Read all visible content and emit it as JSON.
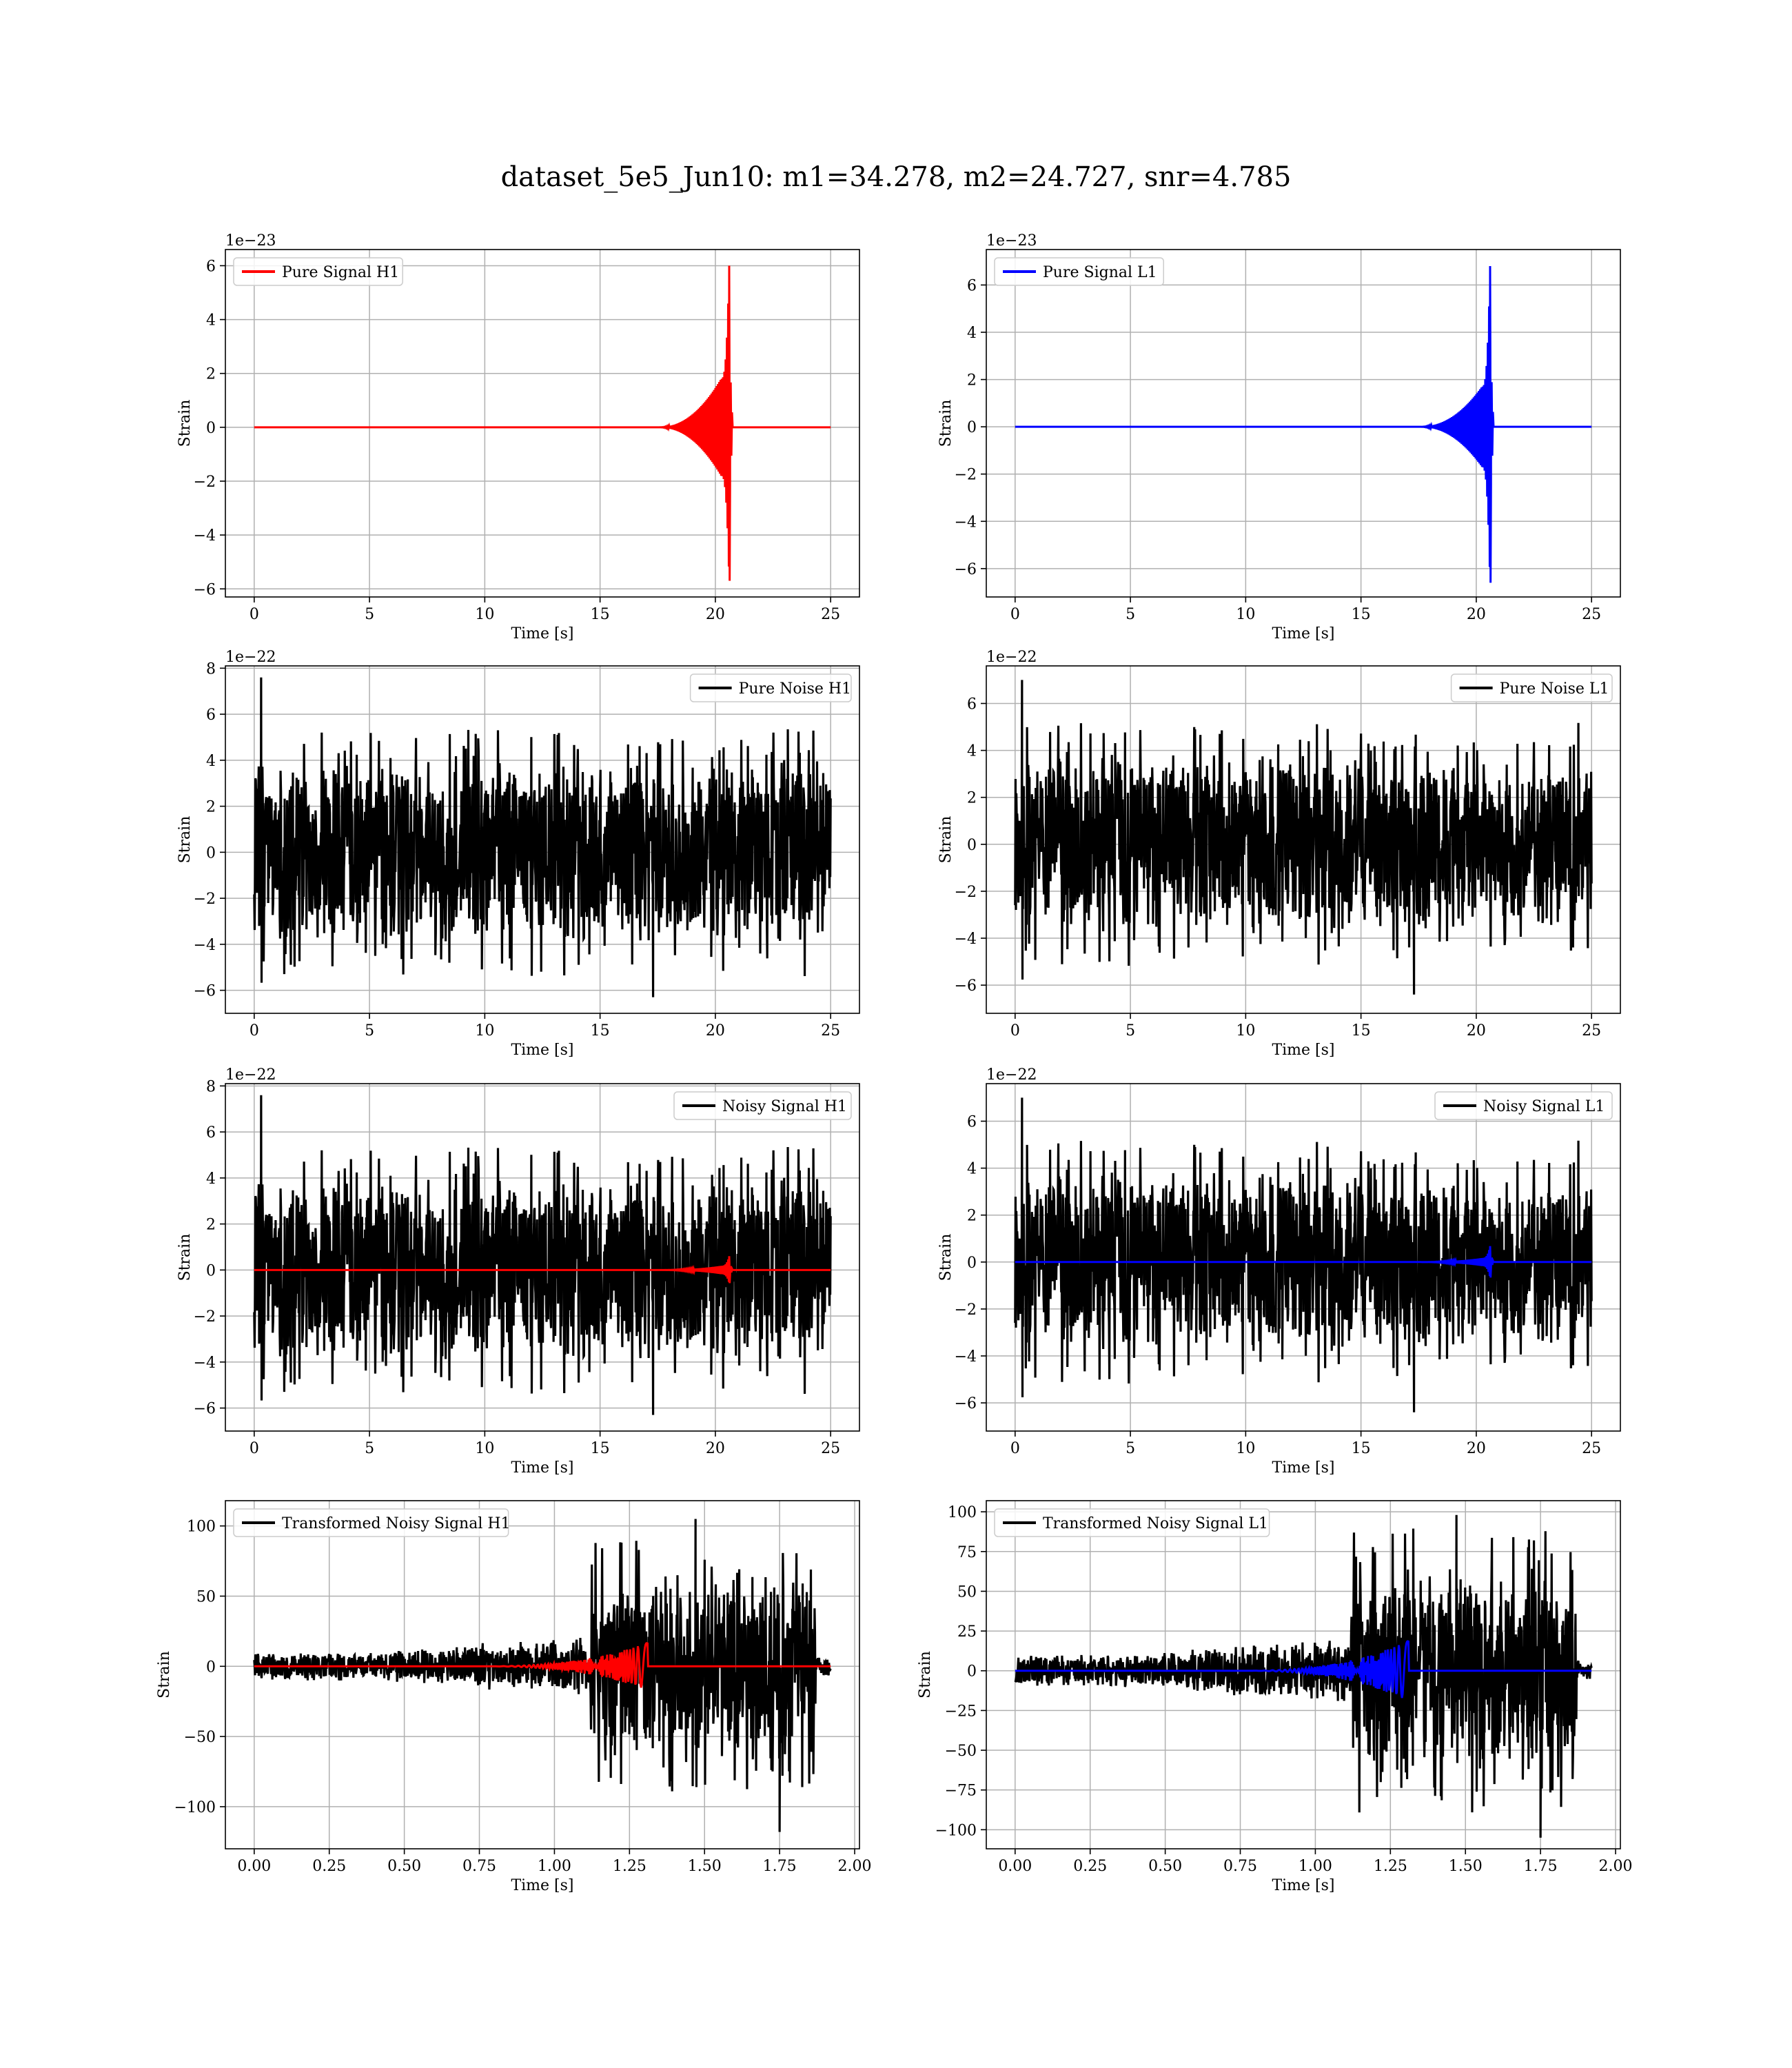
{
  "figure": {
    "title": "dataset_5e5_Jun10: m1=34.278, m2=24.727, snr=4.785"
  },
  "colors": {
    "h1_signal": "#ff0000",
    "l1_signal": "#0000ff",
    "noise": "#000000",
    "grid": "#b0b0b0",
    "background": "#ffffff"
  },
  "chart_data": [
    {
      "type": "line",
      "id": "pure-signal-h1",
      "xlabel": "Time [s]",
      "ylabel": "Strain",
      "offset_label": "1e−23",
      "xlim": [
        -1.25,
        26.25
      ],
      "ylim": [
        -6.3,
        6.6
      ],
      "xticks": [
        0,
        5,
        10,
        15,
        20,
        25
      ],
      "xtick_labels": [
        "0",
        "5",
        "10",
        "15",
        "20",
        "25"
      ],
      "yticks": [
        -6,
        -4,
        -2,
        0,
        2,
        4,
        6
      ],
      "ytick_labels": [
        "−6",
        "−4",
        "−2",
        "0",
        "2",
        "4",
        "6"
      ],
      "grid": true,
      "legend_loc": "upper left",
      "legend": [
        {
          "label": "Pure Signal H1",
          "color": "#ff0000"
        }
      ],
      "series": [
        {
          "name": "Pure Signal H1",
          "color": "#ff0000",
          "kind": "chirp",
          "x_range": [
            0,
            25
          ],
          "chirp_start": 17.5,
          "peak_time": 20.6,
          "peak_pos": 6.0,
          "peak_neg": -5.7,
          "pre_peak_level": 1.8,
          "ringdown_end": 20.75
        }
      ]
    },
    {
      "type": "line",
      "id": "pure-signal-l1",
      "xlabel": "Time [s]",
      "ylabel": "Strain",
      "offset_label": "1e−23",
      "xlim": [
        -1.25,
        26.25
      ],
      "ylim": [
        -7.2,
        7.5
      ],
      "xticks": [
        0,
        5,
        10,
        15,
        20,
        25
      ],
      "xtick_labels": [
        "0",
        "5",
        "10",
        "15",
        "20",
        "25"
      ],
      "yticks": [
        -6,
        -4,
        -2,
        0,
        2,
        4,
        6
      ],
      "ytick_labels": [
        "−6",
        "−4",
        "−2",
        "0",
        "2",
        "4",
        "6"
      ],
      "grid": true,
      "legend_loc": "upper left",
      "legend": [
        {
          "label": "Pure Signal L1",
          "color": "#0000ff"
        }
      ],
      "series": [
        {
          "name": "Pure Signal L1",
          "color": "#0000ff",
          "kind": "chirp",
          "x_range": [
            0,
            25
          ],
          "chirp_start": 17.5,
          "peak_time": 20.6,
          "peak_pos": 6.8,
          "peak_neg": -6.6,
          "pre_peak_level": 1.7,
          "ringdown_end": 20.75
        }
      ]
    },
    {
      "type": "line",
      "id": "pure-noise-h1",
      "xlabel": "Time [s]",
      "ylabel": "Strain",
      "offset_label": "1e−22",
      "xlim": [
        -1.25,
        26.25
      ],
      "ylim": [
        -7.0,
        8.1
      ],
      "xticks": [
        0,
        5,
        10,
        15,
        20,
        25
      ],
      "xtick_labels": [
        "0",
        "5",
        "10",
        "15",
        "20",
        "25"
      ],
      "yticks": [
        -6,
        -4,
        -2,
        0,
        2,
        4,
        6,
        8
      ],
      "ytick_labels": [
        "−6",
        "−4",
        "−2",
        "0",
        "2",
        "4",
        "6",
        "8"
      ],
      "grid": true,
      "legend_loc": "upper right",
      "legend": [
        {
          "label": "Pure Noise H1",
          "color": "#000000"
        }
      ],
      "series": [
        {
          "name": "Pure Noise H1",
          "color": "#000000",
          "kind": "noise",
          "x_range": [
            0,
            25
          ],
          "core": 3.2,
          "spike_max": 7.6,
          "spike_min": -6.3,
          "seed": 11
        }
      ]
    },
    {
      "type": "line",
      "id": "pure-noise-l1",
      "xlabel": "Time [s]",
      "ylabel": "Strain",
      "offset_label": "1e−22",
      "xlim": [
        -1.25,
        26.25
      ],
      "ylim": [
        -7.2,
        7.6
      ],
      "xticks": [
        0,
        5,
        10,
        15,
        20,
        25
      ],
      "xtick_labels": [
        "0",
        "5",
        "10",
        "15",
        "20",
        "25"
      ],
      "yticks": [
        -6,
        -4,
        -2,
        0,
        2,
        4,
        6
      ],
      "ytick_labels": [
        "−6",
        "−4",
        "−2",
        "0",
        "2",
        "4",
        "6"
      ],
      "grid": true,
      "legend_loc": "upper right",
      "legend": [
        {
          "label": "Pure Noise L1",
          "color": "#000000"
        }
      ],
      "series": [
        {
          "name": "Pure Noise L1",
          "color": "#000000",
          "kind": "noise",
          "x_range": [
            0,
            25
          ],
          "core": 3.0,
          "spike_max": 7.0,
          "spike_min": -6.4,
          "seed": 23
        }
      ]
    },
    {
      "type": "line",
      "id": "noisy-signal-h1",
      "xlabel": "Time [s]",
      "ylabel": "Strain",
      "offset_label": "1e−22",
      "xlim": [
        -1.25,
        26.25
      ],
      "ylim": [
        -7.0,
        8.1
      ],
      "xticks": [
        0,
        5,
        10,
        15,
        20,
        25
      ],
      "xtick_labels": [
        "0",
        "5",
        "10",
        "15",
        "20",
        "25"
      ],
      "yticks": [
        -6,
        -4,
        -2,
        0,
        2,
        4,
        6,
        8
      ],
      "ytick_labels": [
        "−6",
        "−4",
        "−2",
        "0",
        "2",
        "4",
        "6",
        "8"
      ],
      "grid": true,
      "legend_loc": "upper right",
      "legend": [
        {
          "label": "Noisy Signal H1",
          "color": "#000000"
        }
      ],
      "series": [
        {
          "name": "Noisy Signal H1",
          "color": "#000000",
          "kind": "noise",
          "x_range": [
            0,
            25
          ],
          "core": 3.2,
          "spike_max": 7.6,
          "spike_min": -6.3,
          "seed": 11
        },
        {
          "color": "#ff0000",
          "kind": "chirp",
          "x_range": [
            0,
            25
          ],
          "chirp_start": 17.5,
          "peak_time": 20.6,
          "peak_pos": 0.6,
          "peak_neg": -0.57,
          "pre_peak_level": 0.18,
          "ringdown_end": 20.75
        }
      ]
    },
    {
      "type": "line",
      "id": "noisy-signal-l1",
      "xlabel": "Time [s]",
      "ylabel": "Strain",
      "offset_label": "1e−22",
      "xlim": [
        -1.25,
        26.25
      ],
      "ylim": [
        -7.2,
        7.6
      ],
      "xticks": [
        0,
        5,
        10,
        15,
        20,
        25
      ],
      "xtick_labels": [
        "0",
        "5",
        "10",
        "15",
        "20",
        "25"
      ],
      "yticks": [
        -6,
        -4,
        -2,
        0,
        2,
        4,
        6
      ],
      "ytick_labels": [
        "−6",
        "−4",
        "−2",
        "0",
        "2",
        "4",
        "6"
      ],
      "grid": true,
      "legend_loc": "upper right",
      "legend": [
        {
          "label": "Noisy Signal L1",
          "color": "#000000"
        }
      ],
      "series": [
        {
          "name": "Noisy Signal L1",
          "color": "#000000",
          "kind": "noise",
          "x_range": [
            0,
            25
          ],
          "core": 3.0,
          "spike_max": 7.0,
          "spike_min": -6.4,
          "seed": 23
        },
        {
          "color": "#0000ff",
          "kind": "chirp",
          "x_range": [
            0,
            25
          ],
          "chirp_start": 17.5,
          "peak_time": 20.6,
          "peak_pos": 0.68,
          "peak_neg": -0.66,
          "pre_peak_level": 0.17,
          "ringdown_end": 20.75
        }
      ]
    },
    {
      "type": "line",
      "id": "transformed-noisy-signal-h1",
      "xlabel": "Time [s]",
      "ylabel": "Strain",
      "offset_label": "",
      "xlim": [
        -0.096,
        2.016
      ],
      "ylim": [
        -130,
        118
      ],
      "xticks": [
        0.0,
        0.25,
        0.5,
        0.75,
        1.0,
        1.25,
        1.5,
        1.75,
        2.0
      ],
      "xtick_labels": [
        "0.00",
        "0.25",
        "0.50",
        "0.75",
        "1.00",
        "1.25",
        "1.50",
        "1.75",
        "2.00"
      ],
      "yticks": [
        -100,
        -50,
        0,
        50,
        100
      ],
      "ytick_labels": [
        "−100",
        "−50",
        "0",
        "50",
        "100"
      ],
      "grid": true,
      "legend_loc": "upper left",
      "legend": [
        {
          "label": "Transformed Noisy Signal H1",
          "color": "#000000"
        }
      ],
      "series": [
        {
          "name": "Transformed Noisy Signal H1",
          "color": "#000000",
          "kind": "transformed_noise",
          "x_range": [
            0,
            1.92
          ],
          "step_time": 1.12,
          "drop_time": 1.87,
          "spike_max": 105,
          "spike_min": -118,
          "seed": 5
        },
        {
          "color": "#ff0000",
          "kind": "transformed_chirp",
          "x_range": [
            0,
            1.92
          ],
          "chirp_start": 0.75,
          "peak_time": 1.3,
          "peak_amp": 16
        }
      ]
    },
    {
      "type": "line",
      "id": "transformed-noisy-signal-l1",
      "xlabel": "Time [s]",
      "ylabel": "Strain",
      "offset_label": "",
      "xlim": [
        -0.096,
        2.016
      ],
      "ylim": [
        -112,
        107
      ],
      "xticks": [
        0.0,
        0.25,
        0.5,
        0.75,
        1.0,
        1.25,
        1.5,
        1.75,
        2.0
      ],
      "xtick_labels": [
        "0.00",
        "0.25",
        "0.50",
        "0.75",
        "1.00",
        "1.25",
        "1.50",
        "1.75",
        "2.00"
      ],
      "yticks": [
        -100,
        -75,
        -50,
        -25,
        0,
        25,
        50,
        75,
        100
      ],
      "ytick_labels": [
        "−100",
        "−75",
        "−50",
        "−25",
        "0",
        "25",
        "50",
        "75",
        "100"
      ],
      "grid": true,
      "legend_loc": "upper left",
      "legend": [
        {
          "label": "Transformed Noisy Signal L1",
          "color": "#000000"
        }
      ],
      "series": [
        {
          "name": "Transformed Noisy Signal L1",
          "color": "#000000",
          "kind": "transformed_noise",
          "x_range": [
            0,
            1.92
          ],
          "step_time": 1.12,
          "drop_time": 1.87,
          "spike_max": 98,
          "spike_min": -105,
          "seed": 9
        },
        {
          "color": "#0000ff",
          "kind": "transformed_chirp",
          "x_range": [
            0,
            1.92
          ],
          "chirp_start": 0.75,
          "peak_time": 1.3,
          "peak_amp": 18
        }
      ]
    }
  ]
}
